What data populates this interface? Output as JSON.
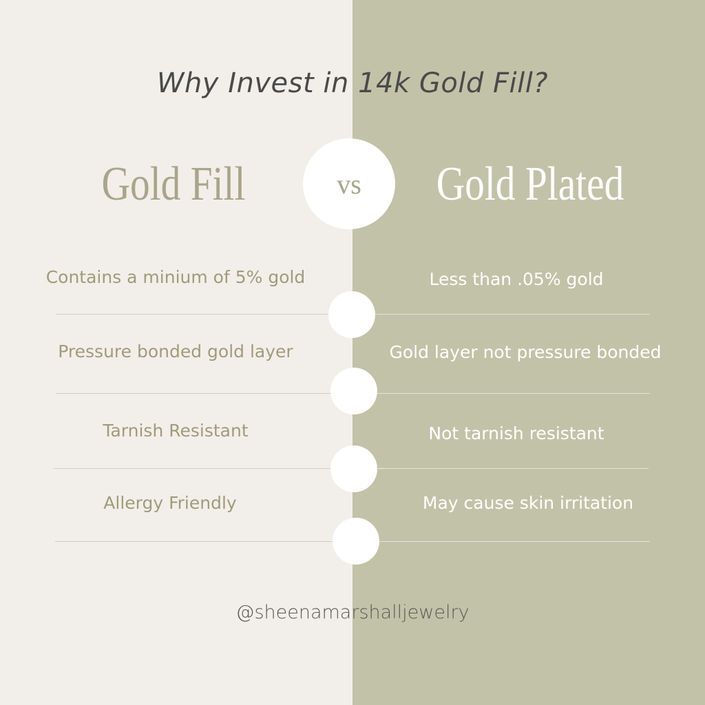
{
  "title": "Why Invest in 14k Gold Fill?",
  "left_heading": "Gold Fill",
  "vs_label": "vs",
  "right_heading": "Gold Plated",
  "rows": [
    {
      "left": "Contains a minium of 5% gold",
      "right": "Less than .05% gold"
    },
    {
      "left": "Pressure bonded gold layer",
      "right": "Gold layer not pressure bonded"
    },
    {
      "left": "Tarnish Resistant",
      "right": "Not tarnish resistant"
    },
    {
      "left": "Allergy Friendly",
      "right": "May cause skin irritation"
    }
  ],
  "handle": "@sheenamarshalljewelry",
  "colors": {
    "left_bg": "#f2efea",
    "right_bg": "#c2c2a8",
    "accent_text": "#a8a68a"
  }
}
